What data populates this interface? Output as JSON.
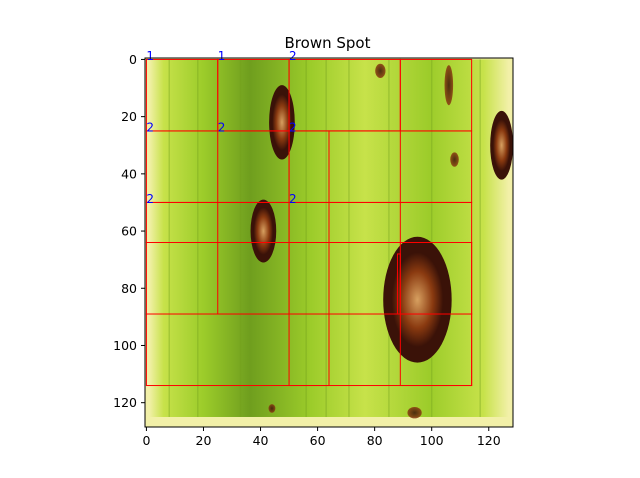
{
  "chart_data": {
    "type": "image",
    "title": "Brown Spot",
    "xlim": [
      -0.5,
      128.5
    ],
    "ylim": [
      128.5,
      -0.5
    ],
    "xticks": [
      0,
      20,
      40,
      60,
      80,
      100,
      120
    ],
    "yticks": [
      0,
      20,
      40,
      60,
      80,
      100,
      120
    ],
    "xtick_labels": [
      "0",
      "20",
      "40",
      "60",
      "80",
      "100",
      "120"
    ],
    "ytick_labels": [
      "0",
      "20",
      "40",
      "60",
      "80",
      "100",
      "120"
    ],
    "grid_color": "#ff0000",
    "label_color": "#0000ff",
    "image_colors": {
      "leaf_green": "#9ccc2a",
      "leaf_light": "#c7e24a",
      "leaf_dark": "#6f9e1e",
      "border_light": "#f2f0a8",
      "lesion_dark": "#3a1208",
      "lesion_brown": "#8a3a10",
      "lesion_center": "#d7a060"
    },
    "lesions": [
      {
        "cx": 47.5,
        "cy": 22,
        "rx": 4.5,
        "ry": 13
      },
      {
        "cx": 41,
        "cy": 60,
        "rx": 4.5,
        "ry": 11
      },
      {
        "cx": 95,
        "cy": 84,
        "rx": 12,
        "ry": 22
      },
      {
        "cx": 124.5,
        "cy": 30,
        "rx": 4,
        "ry": 12
      },
      {
        "cx": 106,
        "cy": 9,
        "rx": 1.5,
        "ry": 7
      },
      {
        "cx": 82,
        "cy": 4,
        "rx": 1.8,
        "ry": 2.5
      },
      {
        "cx": 108,
        "cy": 35,
        "rx": 1.5,
        "ry": 2.5
      },
      {
        "cx": 94,
        "cy": 123.5,
        "rx": 2.5,
        "ry": 2
      },
      {
        "cx": 44,
        "cy": 122,
        "rx": 1.2,
        "ry": 1.5
      }
    ],
    "grid_boxes": [
      {
        "x0": 0,
        "y0": 0,
        "x1": 25,
        "y1": 25
      },
      {
        "x0": 25,
        "y0": 0,
        "x1": 50,
        "y1": 25
      },
      {
        "x0": 50,
        "y0": 0,
        "x1": 89,
        "y1": 25
      },
      {
        "x0": 89,
        "y0": 0,
        "x1": 114,
        "y1": 25
      },
      {
        "x0": 0,
        "y0": 25,
        "x1": 114,
        "y1": 50
      },
      {
        "x0": 25,
        "y0": 25,
        "x1": 50,
        "y1": 89
      },
      {
        "x0": 50,
        "y0": 25,
        "x1": 64,
        "y1": 114
      },
      {
        "x0": 64,
        "y0": 25,
        "x1": 89,
        "y1": 64
      },
      {
        "x0": 0,
        "y0": 50,
        "x1": 114,
        "y1": 64
      },
      {
        "x0": 0,
        "y0": 64,
        "x1": 114,
        "y1": 89
      },
      {
        "x0": 89,
        "y0": 64,
        "x1": 114,
        "y1": 89
      },
      {
        "x0": 88,
        "y0": 68,
        "x1": 89,
        "y1": 89
      },
      {
        "x0": 0,
        "y0": 89,
        "x1": 114,
        "y1": 114
      },
      {
        "x0": 89,
        "y0": 89,
        "x1": 114,
        "y1": 114
      }
    ],
    "grid_labels": [
      {
        "x": 0,
        "y": 0,
        "text": "1"
      },
      {
        "x": 25,
        "y": 0,
        "text": "1"
      },
      {
        "x": 50,
        "y": 0,
        "text": "2"
      },
      {
        "x": 0,
        "y": 25,
        "text": "2"
      },
      {
        "x": 25,
        "y": 25,
        "text": "2"
      },
      {
        "x": 50,
        "y": 25,
        "text": "2"
      },
      {
        "x": 0,
        "y": 50,
        "text": "2"
      },
      {
        "x": 50,
        "y": 50,
        "text": "2"
      }
    ]
  }
}
